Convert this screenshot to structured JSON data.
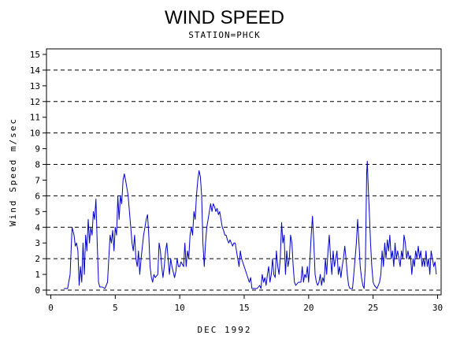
{
  "chart_data": {
    "type": "line",
    "title": "WIND SPEED",
    "subtitle": "STATION=PHCK",
    "xlabel": "DEC 1992",
    "ylabel": "Wind Speed m/sec",
    "xlim": [
      0,
      30
    ],
    "ylim": [
      0,
      15
    ],
    "xticks": [
      "0",
      "5",
      "10",
      "15",
      "20",
      "25",
      "30"
    ],
    "yticks": [
      "0",
      "1",
      "2",
      "3",
      "4",
      "5",
      "6",
      "7",
      "8",
      "9",
      "10",
      "11",
      "12",
      "13",
      "14",
      "15"
    ],
    "grid_y": [
      2,
      4,
      6,
      8,
      10,
      12,
      14
    ],
    "grid": "dashed horizontal at even values",
    "series": [
      {
        "color": "#0000cc",
        "points": [
          [
            1.0,
            0.1
          ],
          [
            1.3,
            0.1
          ],
          [
            1.5,
            1.0
          ],
          [
            1.65,
            4.0
          ],
          [
            1.8,
            3.5
          ],
          [
            1.9,
            2.8
          ],
          [
            2.0,
            3.0
          ],
          [
            2.1,
            2.5
          ],
          [
            2.2,
            0.3
          ],
          [
            2.3,
            1.5
          ],
          [
            2.4,
            0.5
          ],
          [
            2.5,
            3.0
          ],
          [
            2.6,
            1.0
          ],
          [
            2.7,
            3.5
          ],
          [
            2.8,
            2.5
          ],
          [
            2.9,
            4.5
          ],
          [
            3.0,
            3.0
          ],
          [
            3.1,
            4.0
          ],
          [
            3.2,
            3.5
          ],
          [
            3.3,
            5.0
          ],
          [
            3.4,
            4.5
          ],
          [
            3.5,
            5.8
          ],
          [
            3.6,
            3.0
          ],
          [
            3.7,
            0.5
          ],
          [
            3.8,
            0.2
          ],
          [
            4.0,
            0.2
          ],
          [
            4.2,
            0.1
          ],
          [
            4.4,
            0.5
          ],
          [
            4.5,
            2.0
          ],
          [
            4.6,
            3.5
          ],
          [
            4.7,
            3.0
          ],
          [
            4.8,
            3.8
          ],
          [
            4.9,
            2.5
          ],
          [
            5.0,
            4.0
          ],
          [
            5.1,
            3.5
          ],
          [
            5.2,
            6.0
          ],
          [
            5.3,
            4.5
          ],
          [
            5.4,
            6.0
          ],
          [
            5.5,
            5.5
          ],
          [
            5.6,
            7.0
          ],
          [
            5.7,
            7.4
          ],
          [
            5.8,
            7.0
          ],
          [
            5.9,
            6.5
          ],
          [
            6.0,
            6.0
          ],
          [
            6.1,
            5.0
          ],
          [
            6.2,
            4.0
          ],
          [
            6.3,
            3.0
          ],
          [
            6.4,
            2.5
          ],
          [
            6.5,
            3.5
          ],
          [
            6.6,
            2.0
          ],
          [
            6.7,
            1.5
          ],
          [
            6.8,
            2.5
          ],
          [
            6.9,
            1.0
          ],
          [
            7.0,
            2.0
          ],
          [
            7.2,
            3.5
          ],
          [
            7.3,
            4.0
          ],
          [
            7.4,
            4.5
          ],
          [
            7.5,
            4.8
          ],
          [
            7.6,
            3.5
          ],
          [
            7.7,
            1.5
          ],
          [
            7.8,
            0.8
          ],
          [
            7.9,
            0.5
          ],
          [
            8.0,
            1.0
          ],
          [
            8.1,
            0.8
          ],
          [
            8.3,
            1.0
          ],
          [
            8.4,
            3.0
          ],
          [
            8.5,
            2.5
          ],
          [
            8.6,
            1.5
          ],
          [
            8.7,
            0.8
          ],
          [
            8.8,
            1.5
          ],
          [
            8.9,
            2.5
          ],
          [
            9.0,
            3.0
          ],
          [
            9.1,
            2.0
          ],
          [
            9.2,
            1.0
          ],
          [
            9.3,
            2.0
          ],
          [
            9.4,
            1.5
          ],
          [
            9.6,
            0.8
          ],
          [
            9.7,
            1.2
          ],
          [
            9.8,
            2.0
          ],
          [
            9.9,
            1.5
          ],
          [
            10.0,
            1.5
          ],
          [
            10.1,
            1.8
          ],
          [
            10.3,
            1.5
          ],
          [
            10.4,
            3.0
          ],
          [
            10.5,
            1.5
          ],
          [
            10.6,
            2.5
          ],
          [
            10.7,
            2.0
          ],
          [
            10.8,
            3.5
          ],
          [
            10.9,
            4.0
          ],
          [
            11.0,
            3.5
          ],
          [
            11.1,
            5.0
          ],
          [
            11.2,
            4.5
          ],
          [
            11.3,
            6.0
          ],
          [
            11.4,
            7.0
          ],
          [
            11.5,
            7.6
          ],
          [
            11.6,
            7.2
          ],
          [
            11.7,
            6.0
          ],
          [
            11.8,
            3.0
          ],
          [
            11.9,
            1.5
          ],
          [
            12.0,
            3.0
          ],
          [
            12.1,
            4.0
          ],
          [
            12.2,
            4.5
          ],
          [
            12.3,
            5.0
          ],
          [
            12.4,
            5.5
          ],
          [
            12.5,
            5.0
          ],
          [
            12.6,
            5.5
          ],
          [
            12.7,
            5.3
          ],
          [
            12.8,
            5.0
          ],
          [
            12.9,
            5.2
          ],
          [
            13.0,
            4.8
          ],
          [
            13.1,
            5.0
          ],
          [
            13.2,
            4.5
          ],
          [
            13.3,
            4.0
          ],
          [
            13.4,
            3.8
          ],
          [
            13.5,
            3.5
          ],
          [
            13.6,
            3.5
          ],
          [
            13.7,
            3.2
          ],
          [
            13.8,
            3.0
          ],
          [
            13.9,
            3.2
          ],
          [
            14.0,
            3.0
          ],
          [
            14.1,
            2.8
          ],
          [
            14.2,
            3.0
          ],
          [
            14.3,
            3.0
          ],
          [
            14.4,
            2.5
          ],
          [
            14.5,
            2.0
          ],
          [
            14.6,
            1.5
          ],
          [
            14.7,
            2.5
          ],
          [
            14.8,
            2.0
          ],
          [
            15.0,
            1.5
          ],
          [
            15.2,
            1.0
          ],
          [
            15.4,
            0.5
          ],
          [
            15.5,
            0.8
          ],
          [
            15.6,
            0.1
          ],
          [
            15.8,
            0.1
          ],
          [
            16.0,
            0.1
          ],
          [
            16.2,
            0.3
          ],
          [
            16.3,
            0.1
          ],
          [
            16.4,
            1.0
          ],
          [
            16.5,
            0.5
          ],
          [
            16.6,
            0.8
          ],
          [
            16.7,
            0.3
          ],
          [
            16.8,
            1.0
          ],
          [
            16.9,
            1.5
          ],
          [
            17.0,
            0.5
          ],
          [
            17.1,
            1.0
          ],
          [
            17.2,
            2.0
          ],
          [
            17.3,
            1.0
          ],
          [
            17.4,
            0.8
          ],
          [
            17.5,
            2.5
          ],
          [
            17.6,
            1.5
          ],
          [
            17.7,
            1.0
          ],
          [
            17.8,
            2.0
          ],
          [
            17.9,
            4.3
          ],
          [
            18.0,
            3.0
          ],
          [
            18.1,
            3.5
          ],
          [
            18.2,
            1.0
          ],
          [
            18.3,
            2.5
          ],
          [
            18.4,
            1.5
          ],
          [
            18.5,
            2.0
          ],
          [
            18.6,
            3.5
          ],
          [
            18.7,
            3.0
          ],
          [
            18.8,
            1.5
          ],
          [
            18.9,
            0.5
          ],
          [
            19.0,
            0.3
          ],
          [
            19.2,
            0.5
          ],
          [
            19.4,
            0.5
          ],
          [
            19.5,
            1.5
          ],
          [
            19.6,
            0.5
          ],
          [
            19.7,
            1.0
          ],
          [
            19.8,
            0.8
          ],
          [
            19.9,
            1.5
          ],
          [
            20.0,
            0.5
          ],
          [
            20.1,
            2.0
          ],
          [
            20.2,
            3.5
          ],
          [
            20.3,
            4.7
          ],
          [
            20.4,
            3.0
          ],
          [
            20.5,
            1.0
          ],
          [
            20.6,
            0.5
          ],
          [
            20.7,
            0.3
          ],
          [
            20.8,
            0.5
          ],
          [
            20.9,
            1.0
          ],
          [
            21.0,
            0.3
          ],
          [
            21.1,
            0.8
          ],
          [
            21.2,
            0.5
          ],
          [
            21.3,
            2.0
          ],
          [
            21.4,
            1.0
          ],
          [
            21.5,
            2.5
          ],
          [
            21.6,
            3.5
          ],
          [
            21.7,
            2.0
          ],
          [
            21.8,
            1.0
          ],
          [
            21.9,
            2.5
          ],
          [
            22.0,
            1.5
          ],
          [
            22.1,
            2.0
          ],
          [
            22.2,
            2.5
          ],
          [
            22.3,
            1.0
          ],
          [
            22.4,
            1.5
          ],
          [
            22.5,
            0.8
          ],
          [
            22.6,
            1.5
          ],
          [
            22.7,
            2.0
          ],
          [
            22.8,
            2.8
          ],
          [
            22.9,
            2.0
          ],
          [
            23.0,
            1.0
          ],
          [
            23.1,
            0.3
          ],
          [
            23.2,
            0.1
          ],
          [
            23.4,
            0.1
          ],
          [
            23.5,
            1.0
          ],
          [
            23.6,
            2.0
          ],
          [
            23.7,
            3.0
          ],
          [
            23.8,
            4.5
          ],
          [
            23.9,
            3.0
          ],
          [
            24.0,
            1.5
          ],
          [
            24.1,
            0.8
          ],
          [
            24.2,
            0.3
          ],
          [
            24.3,
            0.1
          ],
          [
            24.4,
            1.5
          ],
          [
            24.5,
            7.5
          ],
          [
            24.55,
            8.2
          ],
          [
            24.6,
            7.0
          ],
          [
            24.7,
            5.0
          ],
          [
            24.8,
            3.0
          ],
          [
            24.9,
            1.5
          ],
          [
            25.0,
            0.5
          ],
          [
            25.1,
            0.3
          ],
          [
            25.3,
            0.1
          ],
          [
            25.5,
            0.5
          ],
          [
            25.6,
            1.0
          ],
          [
            25.7,
            2.5
          ],
          [
            25.8,
            1.5
          ],
          [
            25.9,
            3.0
          ],
          [
            26.0,
            2.0
          ],
          [
            26.1,
            3.2
          ],
          [
            26.2,
            2.5
          ],
          [
            26.3,
            3.5
          ],
          [
            26.4,
            2.0
          ],
          [
            26.5,
            2.5
          ],
          [
            26.6,
            1.5
          ],
          [
            26.7,
            3.0
          ],
          [
            26.8,
            2.0
          ],
          [
            26.9,
            2.5
          ],
          [
            27.0,
            2.0
          ],
          [
            27.1,
            1.5
          ],
          [
            27.2,
            2.5
          ],
          [
            27.3,
            2.0
          ],
          [
            27.4,
            3.5
          ],
          [
            27.5,
            3.0
          ],
          [
            27.6,
            2.0
          ],
          [
            27.7,
            2.5
          ],
          [
            27.8,
            2.0
          ],
          [
            27.9,
            2.2
          ],
          [
            28.0,
            1.0
          ],
          [
            28.1,
            2.0
          ],
          [
            28.2,
            1.5
          ],
          [
            28.3,
            2.5
          ],
          [
            28.4,
            2.0
          ],
          [
            28.5,
            2.8
          ],
          [
            28.6,
            2.0
          ],
          [
            28.7,
            2.5
          ],
          [
            28.8,
            1.5
          ],
          [
            28.9,
            2.0
          ],
          [
            29.0,
            1.5
          ],
          [
            29.1,
            2.5
          ],
          [
            29.2,
            1.5
          ],
          [
            29.3,
            2.0
          ],
          [
            29.4,
            1.0
          ],
          [
            29.5,
            2.5
          ],
          [
            29.6,
            2.0
          ],
          [
            29.7,
            1.5
          ],
          [
            29.8,
            1.8
          ],
          [
            29.9,
            1.0
          ]
        ]
      }
    ]
  }
}
